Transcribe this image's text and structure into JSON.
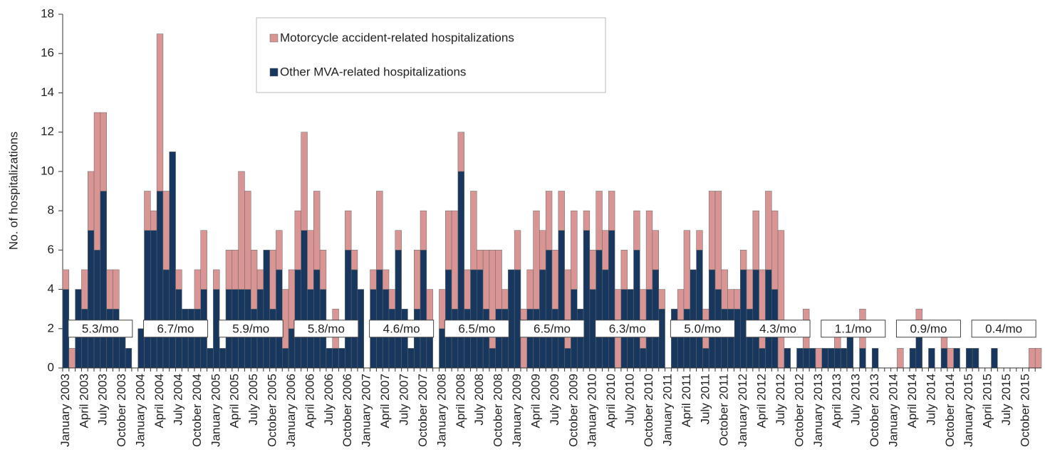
{
  "chart_data": {
    "type": "stacked-bar",
    "y_label": "No. of hospitalizations",
    "categories": [
      "January 2003",
      null,
      null,
      "April 2003",
      null,
      null,
      "July 2003",
      null,
      null,
      "October 2003",
      null,
      null,
      "January 2004",
      null,
      null,
      "April 2004",
      null,
      null,
      "July 2004",
      null,
      null,
      "October 2004",
      null,
      null,
      "January 2005",
      null,
      null,
      "April 2005",
      null,
      null,
      "July 2005",
      null,
      null,
      "October 2005",
      null,
      null,
      "January 2006",
      null,
      null,
      "April 2006",
      null,
      null,
      "July 2006",
      null,
      null,
      "October 2006",
      null,
      null,
      "January 2007",
      null,
      null,
      "April 2007",
      null,
      null,
      "July 2007",
      null,
      null,
      "October 2007",
      null,
      null,
      "January 2008",
      null,
      null,
      "April 2008",
      null,
      null,
      "July 2008",
      null,
      null,
      "October 2008",
      null,
      null,
      "January 2009",
      null,
      null,
      "April 2009",
      null,
      null,
      "July 2009",
      null,
      null,
      "October 2009",
      null,
      null,
      "January 2010",
      null,
      null,
      "April 2010",
      null,
      null,
      "July 2010",
      null,
      null,
      "October 2010",
      null,
      null,
      "January 2011",
      null,
      null,
      "April 2011",
      null,
      null,
      "July 2011",
      null,
      null,
      "October 2011",
      null,
      null,
      "January 2012",
      null,
      null,
      "April 2012",
      null,
      null,
      "July 2012",
      null,
      null,
      "October 2012",
      null,
      null,
      "January 2013",
      null,
      null,
      "April 2013",
      null,
      null,
      "July 2013",
      null,
      null,
      "October 2013",
      null,
      null,
      "January 2014",
      null,
      null,
      "April 2014",
      null,
      null,
      "July 2014",
      null,
      null,
      "October 2014",
      null,
      null,
      "January 2015",
      null,
      null,
      "April 2015",
      null,
      null,
      "July 2015",
      null,
      null,
      "October 2015",
      null,
      null
    ],
    "series": [
      {
        "name": "Motorcycle accident-related hospitalizations",
        "color": "#d99594",
        "values": [
          1,
          1,
          0,
          2,
          3,
          7,
          4,
          2,
          2,
          0,
          0,
          0,
          0,
          2,
          1,
          8,
          4,
          0,
          1,
          0,
          0,
          2,
          3,
          0,
          1,
          0,
          2,
          2,
          6,
          5,
          3,
          1,
          0,
          3,
          2,
          3,
          3,
          3,
          5,
          3,
          4,
          2,
          0,
          2,
          0,
          2,
          1,
          0,
          0,
          1,
          4,
          1,
          1,
          1,
          0,
          0,
          3,
          2,
          2,
          0,
          2,
          3,
          5,
          2,
          2,
          4,
          1,
          3,
          5,
          3,
          1,
          0,
          2,
          3,
          2,
          5,
          2,
          3,
          3,
          2,
          4,
          4,
          0,
          1,
          2,
          3,
          2,
          2,
          4,
          2,
          0,
          2,
          3,
          4,
          2,
          1,
          0,
          0,
          2,
          4,
          0,
          1,
          2,
          4,
          5,
          2,
          1,
          1,
          1,
          2,
          3,
          4,
          4,
          4,
          7,
          0,
          0,
          0,
          2,
          0,
          1,
          0,
          0,
          1,
          0,
          0,
          0,
          2,
          0,
          0,
          0,
          0,
          0,
          1,
          0,
          0,
          1,
          0,
          0,
          0,
          1,
          1,
          0,
          0,
          0,
          0,
          0,
          0,
          0,
          0,
          0,
          0,
          0,
          0,
          1,
          1
        ]
      },
      {
        "name": "Other MVA-related hospitalizations",
        "color": "#17375e",
        "values": [
          4,
          0,
          4,
          3,
          7,
          6,
          9,
          3,
          3,
          2,
          1,
          0,
          2,
          7,
          7,
          9,
          5,
          11,
          4,
          3,
          3,
          3,
          4,
          1,
          4,
          1,
          4,
          4,
          4,
          4,
          3,
          4,
          6,
          3,
          5,
          1,
          2,
          5,
          7,
          4,
          5,
          4,
          1,
          1,
          1,
          6,
          5,
          4,
          0,
          4,
          5,
          4,
          3,
          6,
          3,
          1,
          3,
          6,
          2,
          0,
          2,
          5,
          3,
          10,
          3,
          5,
          5,
          3,
          1,
          3,
          3,
          5,
          5,
          0,
          3,
          3,
          5,
          6,
          3,
          7,
          1,
          4,
          3,
          7,
          4,
          6,
          5,
          7,
          0,
          4,
          4,
          6,
          1,
          4,
          5,
          3,
          0,
          3,
          2,
          3,
          5,
          6,
          1,
          5,
          4,
          3,
          3,
          3,
          5,
          3,
          5,
          1,
          5,
          4,
          0,
          1,
          0,
          1,
          1,
          1,
          0,
          1,
          1,
          1,
          1,
          2,
          0,
          1,
          0,
          1,
          0,
          0,
          0,
          0,
          0,
          1,
          2,
          0,
          1,
          0,
          1,
          0,
          1,
          0,
          1,
          1,
          0,
          0,
          1,
          0,
          0,
          0,
          0,
          0,
          0,
          0
        ]
      }
    ],
    "annotations": [
      "5.3/mo",
      "6.7/mo",
      "5.9/mo",
      "5.8/mo",
      "4.6/mo",
      "6.5/mo",
      "6.5/mo",
      "6.3/mo",
      "5.0/mo",
      "4.3/mo",
      "1.1/mo",
      "0.9/mo",
      "0.4/mo"
    ],
    "ylim": [
      0,
      18
    ],
    "yticks": [
      0,
      2,
      4,
      6,
      8,
      10,
      12,
      14,
      16,
      18
    ],
    "grid": false,
    "legend": "top"
  }
}
